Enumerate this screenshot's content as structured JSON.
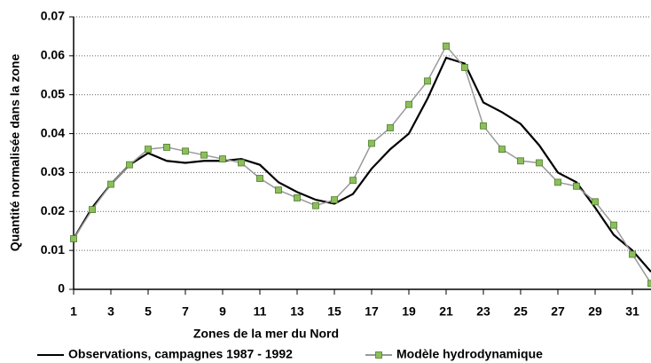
{
  "chart_data": {
    "type": "line",
    "xlabel": "Zones de la mer du Nord",
    "ylabel": "Quantité normalisée dans la zone",
    "x": [
      1,
      2,
      3,
      4,
      5,
      6,
      7,
      8,
      9,
      10,
      11,
      12,
      13,
      14,
      15,
      16,
      17,
      18,
      19,
      20,
      21,
      22,
      23,
      24,
      25,
      26,
      27,
      28,
      29,
      30,
      31,
      32
    ],
    "series": [
      {
        "name": "Observations, campagnes 1987 - 1992",
        "color": "#000000",
        "values": [
          0.013,
          0.021,
          0.027,
          0.032,
          0.035,
          0.033,
          0.0325,
          0.033,
          0.033,
          0.0335,
          0.032,
          0.0275,
          0.025,
          0.023,
          0.022,
          0.0245,
          0.031,
          0.036,
          0.04,
          0.049,
          0.0595,
          0.058,
          0.048,
          0.0455,
          0.0425,
          0.037,
          0.03,
          0.0275,
          0.021,
          0.014,
          0.01,
          0.0045
        ]
      },
      {
        "name": "Modèle hydrodynamique",
        "color": "#8cbf5a",
        "line_color": "#999999",
        "marker": "square",
        "values": [
          0.013,
          0.0205,
          0.027,
          0.032,
          0.036,
          0.0365,
          0.0355,
          0.0345,
          0.0335,
          0.0325,
          0.0285,
          0.0255,
          0.0235,
          0.0215,
          0.023,
          0.028,
          0.0375,
          0.0415,
          0.0475,
          0.0535,
          0.0625,
          0.057,
          0.042,
          0.036,
          0.033,
          0.0325,
          0.0275,
          0.0265,
          0.0225,
          0.0165,
          0.009,
          0.0015
        ]
      }
    ],
    "xlim": [
      1,
      32
    ],
    "xticks": [
      1,
      3,
      5,
      7,
      9,
      11,
      13,
      15,
      17,
      19,
      21,
      23,
      25,
      27,
      29,
      31
    ],
    "ylim": [
      0,
      0.07
    ],
    "yticks": [
      0,
      0.01,
      0.02,
      0.03,
      0.04,
      0.05,
      0.06,
      0.07
    ],
    "grid": true,
    "legend": "bottom"
  }
}
